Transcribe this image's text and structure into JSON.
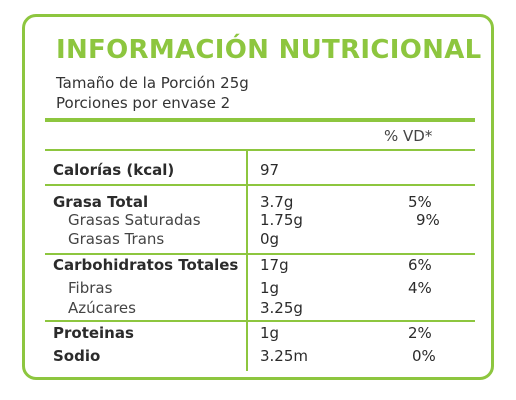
{
  "header": {
    "title": "INFORMACIÓN NUTRICIONAL",
    "serving_size": "Tamaño de la Porción 25g",
    "servings_per_container": "Porciones por envase 2"
  },
  "table": {
    "vd_header": "% VD*",
    "rows": [
      {
        "label": "Calorías (kcal)",
        "amount": "97"
      },
      {
        "label": "Grasa Total",
        "amount": "3.7g",
        "vd": "5%"
      },
      {
        "label": "Grasas Saturadas",
        "amount": "1.75g",
        "vd": "9%"
      },
      {
        "label": "Grasas Trans",
        "amount": "0g"
      },
      {
        "label": "Carbohidratos Totales",
        "amount": "17g",
        "vd": "6%"
      },
      {
        "label": "Fibras",
        "amount": "1g",
        "vd": "4%"
      },
      {
        "label": "Azúcares",
        "amount": "3.25g"
      },
      {
        "label": "Proteinas",
        "amount": "1g",
        "vd": "2%"
      },
      {
        "label": "Sodio",
        "amount": "3.25m",
        "vd": "0%"
      }
    ]
  }
}
